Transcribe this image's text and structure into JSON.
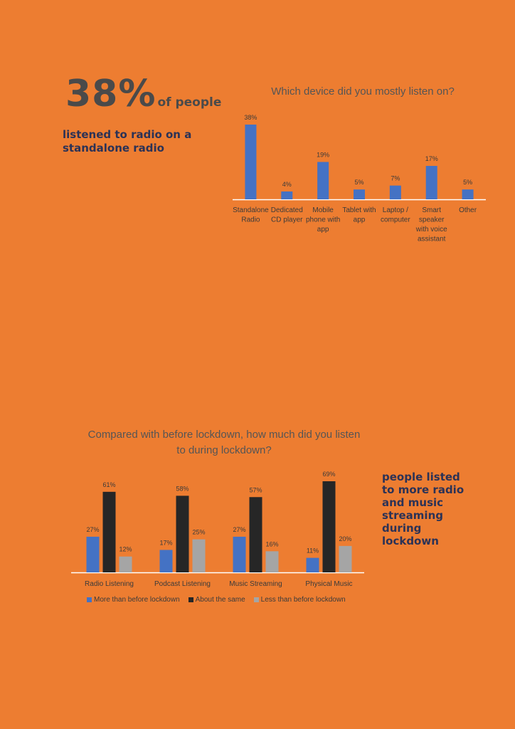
{
  "headline": {
    "percent": "38%",
    "suffix": "of people",
    "description": "listened to radio on a standalone radio"
  },
  "callout": "people listed to more radio and music streaming during lockdown",
  "colors": {
    "background": "#ED7D31",
    "blue": "#4472C4",
    "black": "#262626",
    "gray": "#A5A5A5"
  },
  "chart_data": [
    {
      "type": "bar",
      "title": "Which device did you mostly listen on?",
      "categories": [
        [
          "Standalone",
          "Radio"
        ],
        [
          "Dedicated",
          "CD player"
        ],
        [
          "Mobile",
          "phone with",
          "app"
        ],
        [
          "Tablet with",
          "app"
        ],
        [
          "Laptop /",
          "computer"
        ],
        [
          "Smart",
          "speaker",
          "with voice",
          "assistant"
        ],
        [
          "Other"
        ]
      ],
      "values": [
        38,
        4,
        19,
        5,
        7,
        17,
        5
      ],
      "value_labels": [
        "38%",
        "4%",
        "19%",
        "5%",
        "7%",
        "17%",
        "5%"
      ],
      "ylim": [
        0,
        40
      ],
      "grid": false,
      "legend": "none"
    },
    {
      "type": "bar",
      "title": "Compared with before lockdown, how much did you listen to during lockdown?",
      "categories": [
        "Radio Listening",
        "Podcast Listening",
        "Music Streaming",
        "Physical Music"
      ],
      "series": [
        {
          "name": "More than before lockdown",
          "values": [
            27,
            17,
            27,
            11
          ],
          "labels": [
            "27%",
            "17%",
            "27%",
            "11%"
          ],
          "color": "#4472C4"
        },
        {
          "name": "About the same",
          "values": [
            61,
            58,
            57,
            69
          ],
          "labels": [
            "61%",
            "58%",
            "57%",
            "69%"
          ],
          "color": "#262626"
        },
        {
          "name": "Less than before lockdown",
          "values": [
            12,
            25,
            16,
            20
          ],
          "labels": [
            "12%",
            "25%",
            "16%",
            "20%"
          ],
          "color": "#A5A5A5"
        }
      ],
      "ylim": [
        0,
        70
      ],
      "grid": false,
      "legend": "bottom"
    }
  ]
}
